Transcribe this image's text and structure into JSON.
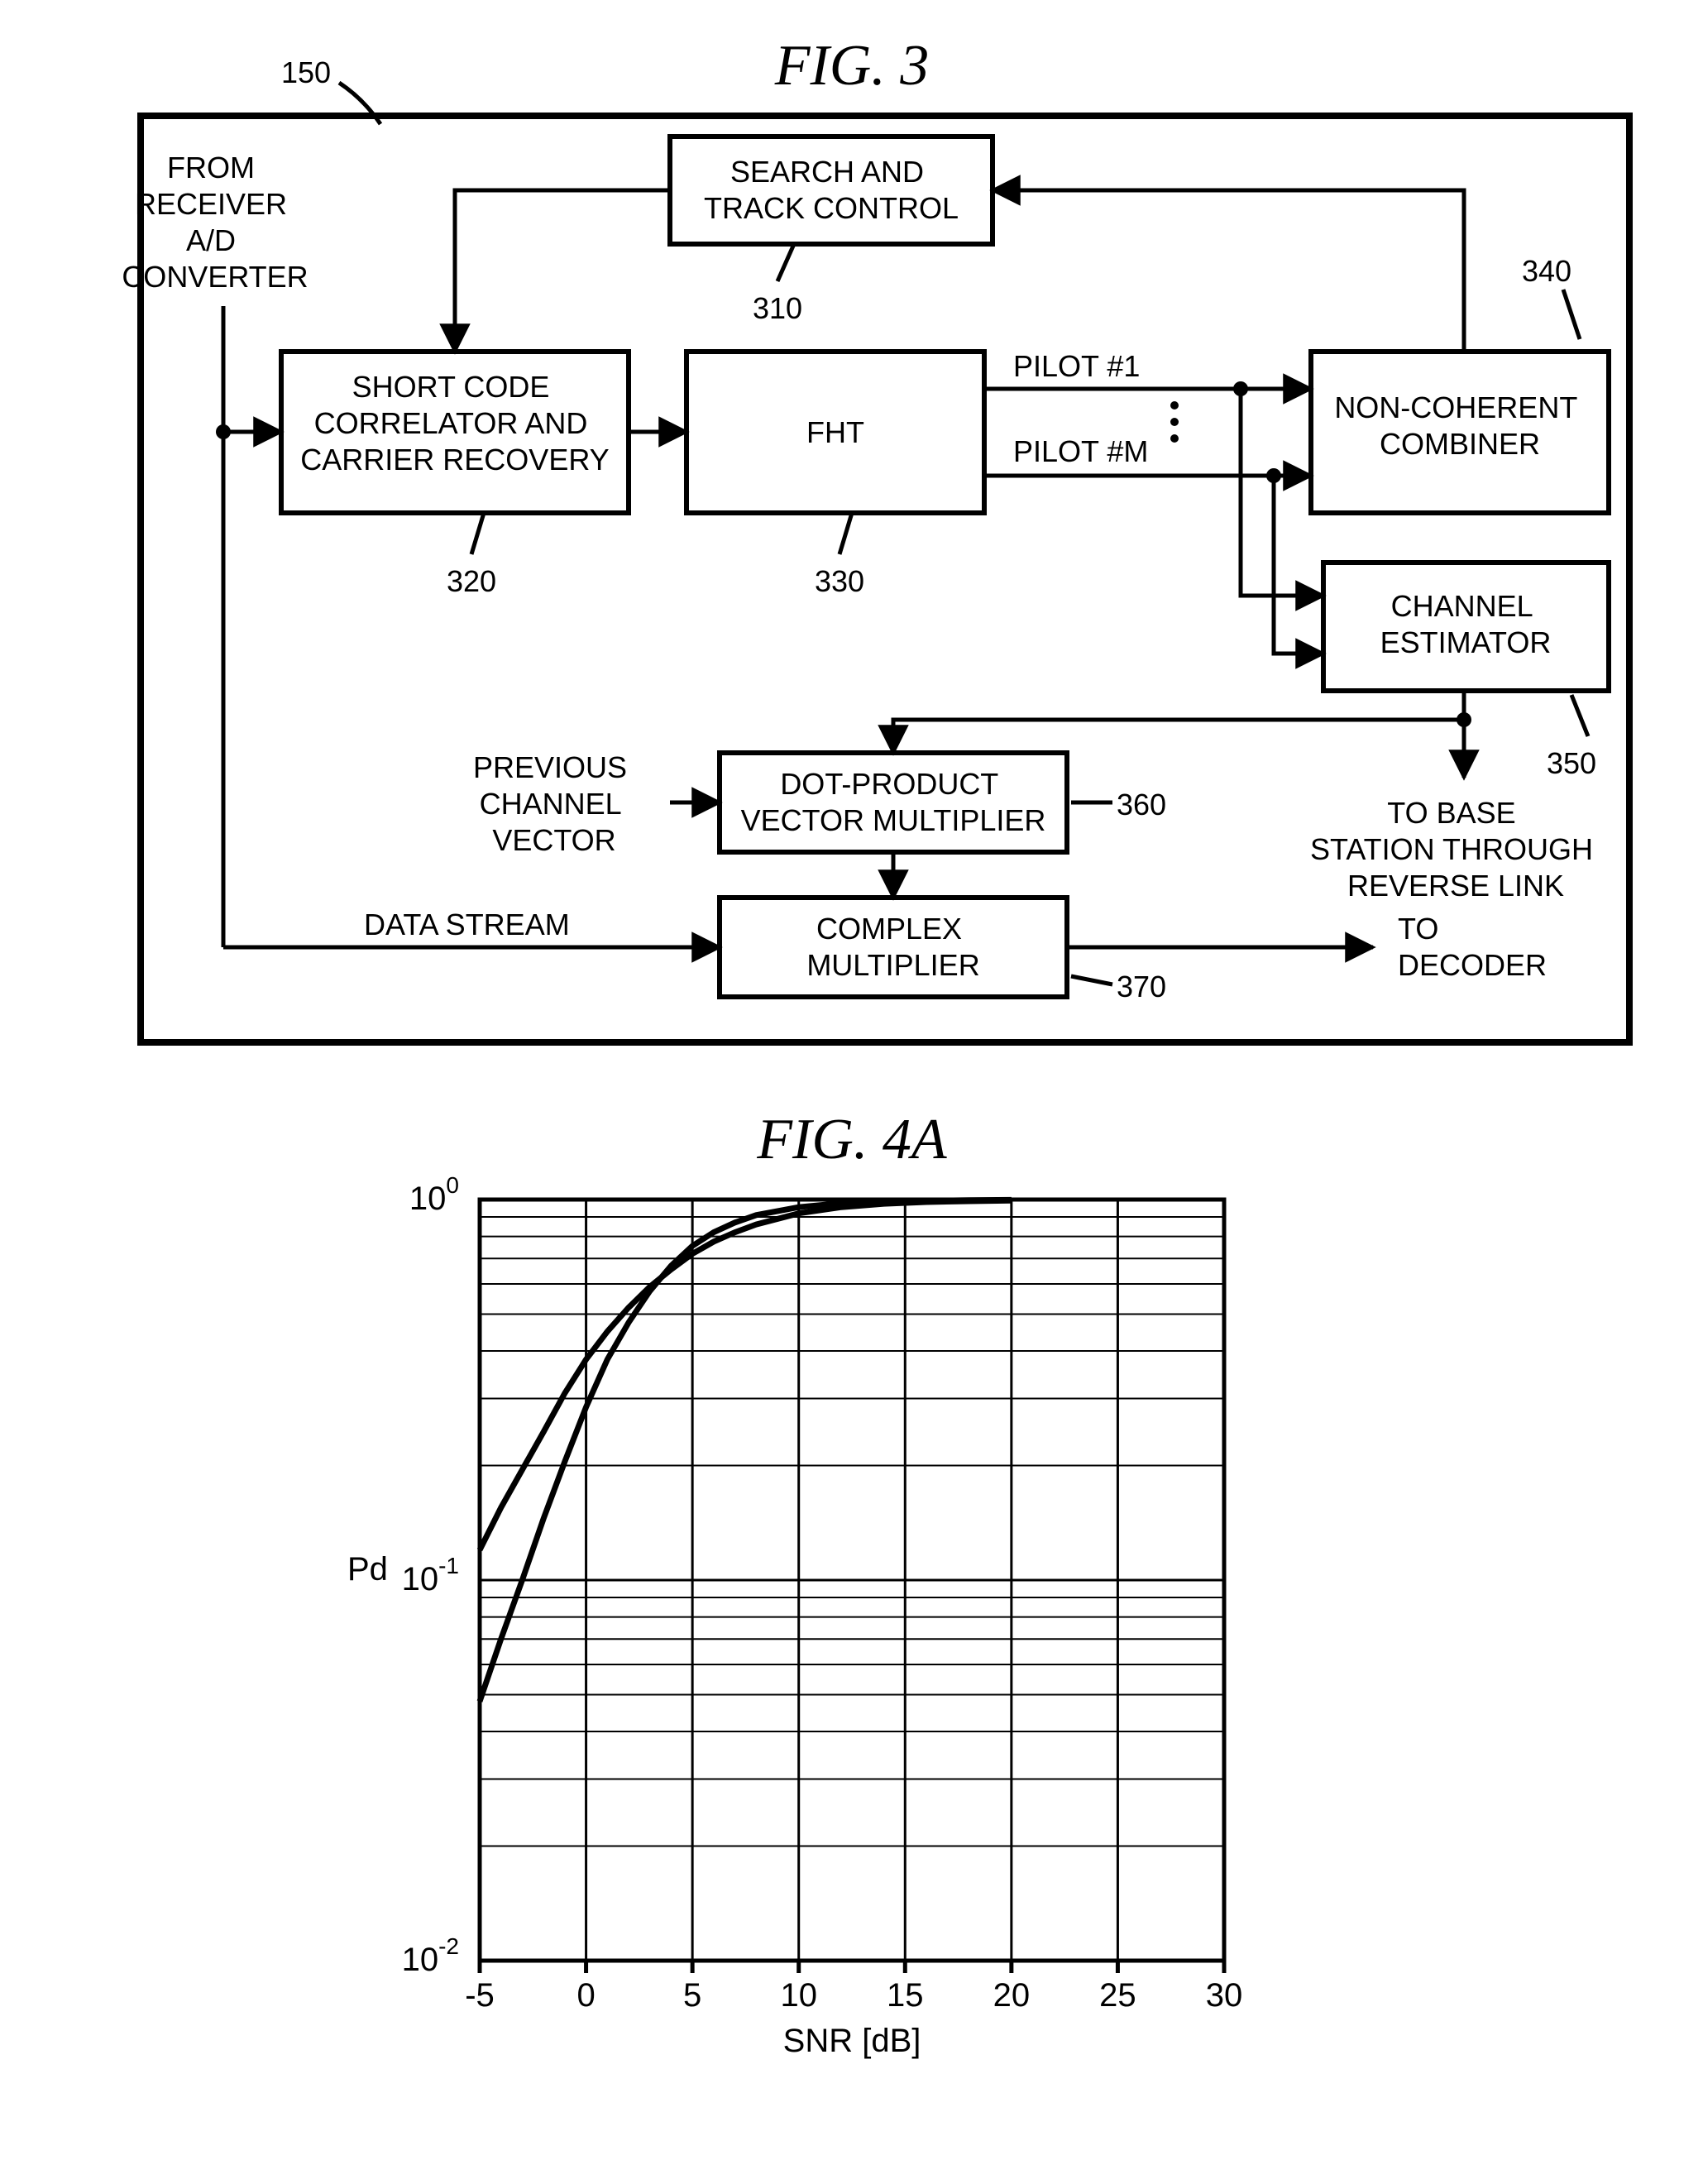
{
  "fig3": {
    "title": "FIG.  3",
    "outer_ref": "150",
    "inputs": {
      "from": [
        "FROM",
        "RECEIVER",
        "A/D",
        "CONVERTER"
      ],
      "prev_vec": [
        "PREVIOUS",
        "CHANNEL",
        "VECTOR"
      ],
      "data_stream": "DATA STREAM"
    },
    "outputs": {
      "to_base": [
        "TO BASE",
        "STATION THROUGH",
        "REVERSE LINK"
      ],
      "to_decoder": [
        "TO",
        "DECODER"
      ]
    },
    "pilots": {
      "p1": "PILOT #1",
      "pm": "PILOT #M"
    },
    "blocks": {
      "search_track": {
        "label": [
          "SEARCH AND",
          "TRACK CONTROL"
        ],
        "ref": "310"
      },
      "short_code": {
        "label": [
          "SHORT CODE",
          "CORRELATOR AND",
          "CARRIER RECOVERY"
        ],
        "ref": "320"
      },
      "fht": {
        "label": [
          "FHT"
        ],
        "ref": "330"
      },
      "noncoh": {
        "label": [
          "NON-COHERENT",
          "COMBINER"
        ],
        "ref": "340"
      },
      "chan_est": {
        "label": [
          "CHANNEL",
          "ESTIMATOR"
        ],
        "ref": "350"
      },
      "dotprod": {
        "label": [
          "DOT-PRODUCT",
          "VECTOR MULTIPLIER"
        ],
        "ref": "360"
      },
      "complex_mult": {
        "label": [
          "COMPLEX",
          "MULTIPLIER"
        ],
        "ref": "370"
      }
    },
    "style": {
      "bg": "#ffffff",
      "stroke": "#000000",
      "block_stroke_w": 6,
      "outer_stroke_w": 8,
      "wire_stroke_w": 5,
      "font_size": 36
    }
  },
  "fig4a": {
    "title": "FIG.  4A",
    "type": "line-loglinear",
    "xlabel": "SNR  [dB]",
    "ylabel": "Pd",
    "xlim": [
      -5,
      30
    ],
    "ylim_exp": [
      -2,
      0
    ],
    "xtick_step": 5,
    "xticks": [
      "-5",
      "0",
      "5",
      "10",
      "15",
      "20",
      "25",
      "30"
    ],
    "yticks_exp": [
      0,
      -1,
      -2
    ],
    "log_minor": [
      2,
      3,
      4,
      5,
      6,
      7,
      8,
      9
    ],
    "background_color": "#ffffff",
    "grid_color": "#000000",
    "curve_color": "#000000",
    "curve_width": 7,
    "series": [
      {
        "name": "curve-a",
        "points": [
          [
            -5,
            0.12
          ],
          [
            -4,
            0.155
          ],
          [
            -3,
            0.195
          ],
          [
            -2,
            0.245
          ],
          [
            -1,
            0.31
          ],
          [
            0,
            0.38
          ],
          [
            1,
            0.45
          ],
          [
            2,
            0.52
          ],
          [
            3,
            0.59
          ],
          [
            4,
            0.655
          ],
          [
            5,
            0.72
          ],
          [
            6,
            0.775
          ],
          [
            7,
            0.82
          ],
          [
            8,
            0.86
          ],
          [
            10,
            0.92
          ],
          [
            12,
            0.955
          ],
          [
            14,
            0.975
          ],
          [
            16,
            0.985
          ],
          [
            18,
            0.99
          ],
          [
            20,
            0.994
          ]
        ]
      },
      {
        "name": "curve-b",
        "points": [
          [
            -5,
            0.048
          ],
          [
            -4,
            0.07
          ],
          [
            -3,
            0.1
          ],
          [
            -2,
            0.145
          ],
          [
            -1,
            0.205
          ],
          [
            0,
            0.285
          ],
          [
            1,
            0.38
          ],
          [
            2,
            0.475
          ],
          [
            3,
            0.575
          ],
          [
            4,
            0.67
          ],
          [
            5,
            0.755
          ],
          [
            6,
            0.82
          ],
          [
            7,
            0.87
          ],
          [
            8,
            0.91
          ],
          [
            10,
            0.955
          ],
          [
            12,
            0.978
          ],
          [
            14,
            0.988
          ],
          [
            16,
            0.993
          ],
          [
            18,
            0.996
          ],
          [
            20,
            0.998
          ]
        ]
      }
    ],
    "style": {
      "label_fontsize": 40,
      "tick_fontsize": 40
    }
  }
}
